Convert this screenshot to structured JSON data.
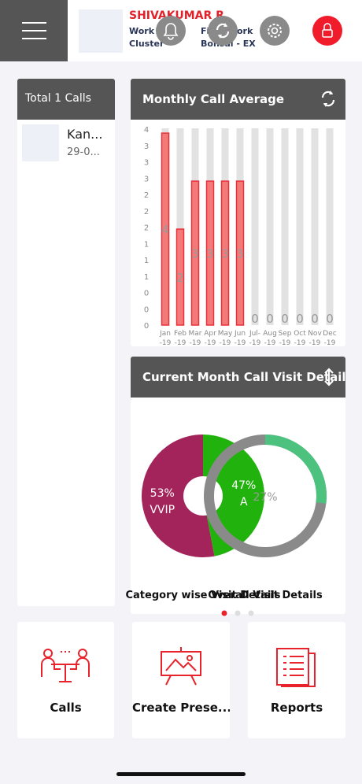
{
  "header": {
    "name": "SHIVAKUMAR R",
    "lines": [
      "Work",
      "Cluster",
      "Field Work",
      "Bonsai - EX"
    ]
  },
  "calls_panel": {
    "title": "Total 1 Calls",
    "items": [
      {
        "name": "Kan...",
        "date": "29-0..."
      }
    ]
  },
  "monthly_chart": {
    "type": "bar",
    "title": "Monthly Call Average",
    "categories": [
      "Jan -19",
      "Feb -19",
      "Mar -19",
      "Apr -19",
      "May -19",
      "Jun -19",
      "Jul- -19",
      "Aug -19",
      "Sep -19",
      "Oct -19",
      "Nov -19",
      "Dec -19"
    ],
    "values": [
      4,
      2,
      3,
      3,
      3,
      3,
      0,
      0,
      0,
      0,
      0,
      0
    ],
    "color": "#f47a7a",
    "ylim": [
      0,
      4.1
    ],
    "yticks": [
      {
        "value": 0,
        "label": "0"
      },
      {
        "value": 0.34,
        "label": "0"
      },
      {
        "value": 0.68,
        "label": "0"
      },
      {
        "value": 1.02,
        "label": "1"
      },
      {
        "value": 1.36,
        "label": "1"
      },
      {
        "value": 1.7,
        "label": "1"
      },
      {
        "value": 2.04,
        "label": "2"
      },
      {
        "value": 2.38,
        "label": "2"
      },
      {
        "value": 2.72,
        "label": "2"
      },
      {
        "value": 3.06,
        "label": "3"
      },
      {
        "value": 3.4,
        "label": "3"
      },
      {
        "value": 3.74,
        "label": "3"
      },
      {
        "value": 4.08,
        "label": "4"
      }
    ]
  },
  "visit_chart": {
    "title": "Current Month Call Visit Details",
    "charts": [
      {
        "type": "pie",
        "caption": "Category wise Visit Details",
        "categories": [
          "VVIP",
          "A"
        ],
        "values": [
          53,
          47
        ],
        "value_labels": [
          "53%",
          "47%"
        ],
        "colors": [
          "#a3245a",
          "#22b20e"
        ]
      },
      {
        "type": "pie",
        "caption": "Overall Visit Details",
        "values": [
          27
        ],
        "value_labels": [
          "27%"
        ],
        "colors": [
          "#4cc27e"
        ]
      }
    ]
  },
  "tiles": [
    "Calls",
    "Create Prese...",
    "Reports"
  ]
}
